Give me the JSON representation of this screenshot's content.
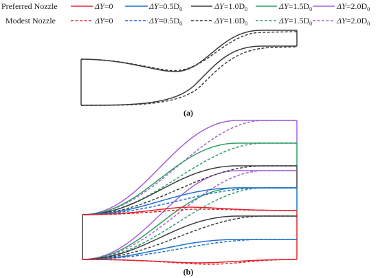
{
  "legend": {
    "row_labels": [
      "Preferred Nozzle",
      "Modest   Nozzle"
    ],
    "entries": [
      {
        "label_main": "ΔY",
        "label_rest": "=0",
        "sub": "",
        "color": "#e0252b"
      },
      {
        "label_main": "ΔY",
        "label_rest": "=0.5D",
        "sub": "0",
        "color": "#1f6fcf"
      },
      {
        "label_main": "ΔY",
        "label_rest": "=1.0D",
        "sub": "0",
        "color": "#3a3a3a"
      },
      {
        "label_main": "ΔY",
        "label_rest": "=1.5D",
        "sub": "0",
        "color": "#2f9e63"
      },
      {
        "label_main": "ΔY",
        "label_rest": "=2.0D",
        "sub": "0",
        "color": "#a55fd8"
      }
    ]
  },
  "caption_a": "(a)",
  "caption_b": "(b)",
  "colors": {
    "red": "#e0252b",
    "blue": "#1f6fcf",
    "black": "#3a3a3a",
    "green": "#2f9e63",
    "purple": "#a55fd8"
  }
}
